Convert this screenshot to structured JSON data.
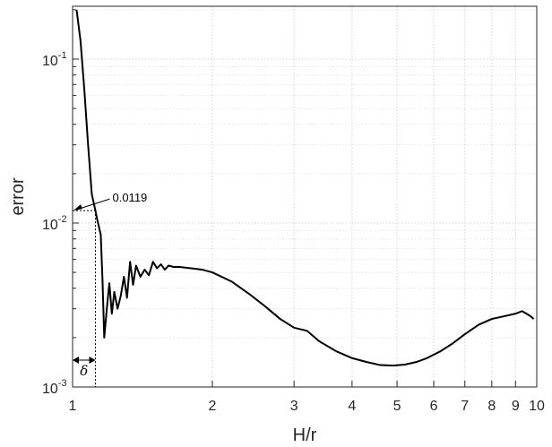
{
  "chart_data": {
    "type": "line",
    "title": "",
    "xlabel": "H/r",
    "ylabel": "error",
    "xscale": "log",
    "yscale": "log",
    "xlim": [
      1,
      10
    ],
    "ylim": [
      0.001,
      0.21
    ],
    "grid": true,
    "legend": "none",
    "x_ticks": [
      {
        "value": 1,
        "label": "1"
      },
      {
        "value": 2,
        "label": "2"
      },
      {
        "value": 3,
        "label": "3"
      },
      {
        "value": 4,
        "label": "4"
      },
      {
        "value": 5,
        "label": "5"
      },
      {
        "value": 6,
        "label": "6"
      },
      {
        "value": 7,
        "label": "7"
      },
      {
        "value": 8,
        "label": "8"
      },
      {
        "value": 9,
        "label": "9"
      },
      {
        "value": 10,
        "label": "10"
      }
    ],
    "y_ticks": [
      {
        "value": 0.001,
        "base": "10",
        "exp": "-3"
      },
      {
        "value": 0.01,
        "base": "10",
        "exp": "-2"
      },
      {
        "value": 0.1,
        "base": "10",
        "exp": "-1"
      }
    ],
    "series": [
      {
        "color": "#000000",
        "x": [
          1.02,
          1.04,
          1.06,
          1.08,
          1.1,
          1.12,
          1.13,
          1.15,
          1.16,
          1.17,
          1.185,
          1.2,
          1.215,
          1.23,
          1.25,
          1.27,
          1.29,
          1.31,
          1.33,
          1.35,
          1.37,
          1.4,
          1.43,
          1.46,
          1.49,
          1.52,
          1.55,
          1.58,
          1.61,
          1.65,
          1.7,
          1.8,
          1.9,
          2.0,
          2.2,
          2.4,
          2.6,
          2.8,
          3.0,
          3.2,
          3.4,
          3.7,
          4.0,
          4.3,
          4.6,
          4.9,
          5.2,
          5.5,
          5.8,
          6.2,
          6.6,
          7.0,
          7.5,
          8.0,
          8.5,
          9.0,
          9.3,
          9.5,
          9.7,
          9.85
        ],
        "y": [
          0.2,
          0.13,
          0.065,
          0.03,
          0.015,
          0.0119,
          0.0105,
          0.0085,
          0.0045,
          0.002,
          0.003,
          0.0043,
          0.0028,
          0.0038,
          0.003,
          0.0036,
          0.0047,
          0.0035,
          0.0058,
          0.0042,
          0.0055,
          0.0047,
          0.0052,
          0.0048,
          0.0058,
          0.0053,
          0.0056,
          0.0052,
          0.0055,
          0.0054,
          0.0054,
          0.0053,
          0.0052,
          0.005,
          0.0044,
          0.0037,
          0.0031,
          0.0026,
          0.0023,
          0.0022,
          0.0019,
          0.00165,
          0.0015,
          0.00142,
          0.00136,
          0.00135,
          0.00137,
          0.00142,
          0.0015,
          0.00165,
          0.00185,
          0.0021,
          0.0024,
          0.0026,
          0.0027,
          0.0028,
          0.0029,
          0.0028,
          0.0027,
          0.0026
        ]
      }
    ],
    "annotations": [
      {
        "text": "0.0119",
        "x": 1.12,
        "y": 0.0119
      },
      {
        "text": "δ",
        "x_start": 1.0,
        "x_end": 1.12
      }
    ]
  }
}
